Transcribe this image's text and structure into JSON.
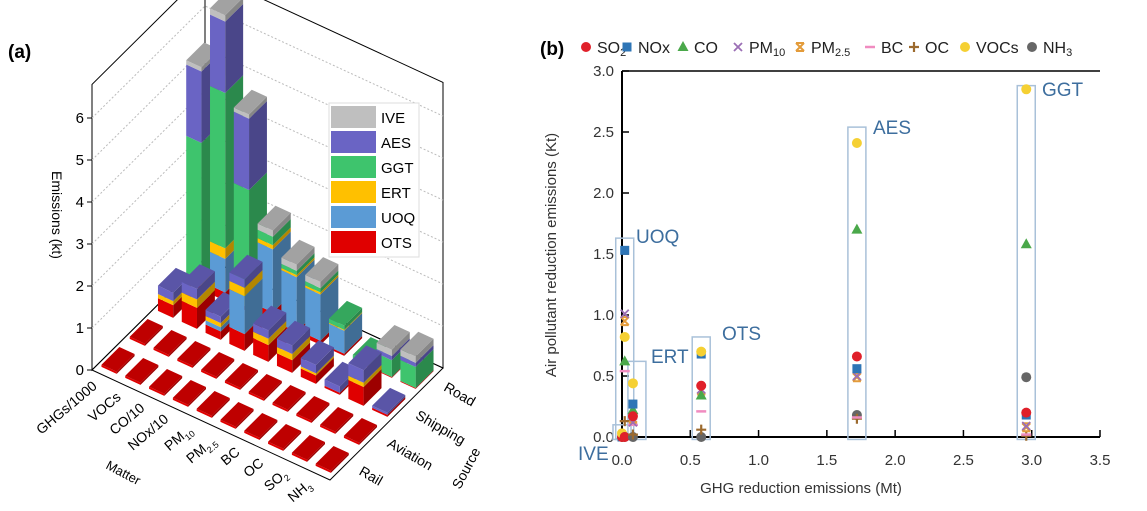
{
  "chart_data": [
    {
      "panel_label": "(a)",
      "type": "bar",
      "subtype": "3d-stacked-bar",
      "zlabel": "Emissions (kt)",
      "xlabel": "Matter",
      "ylabel": "Source",
      "matter": [
        "GHGs/1000",
        "VOCs",
        "CO/10",
        "NOx/10",
        "PM10",
        "PM2.5",
        "BC",
        "OC",
        "SO2",
        "NH3"
      ],
      "matter_labels": [
        "GHGs/1000",
        "VOCs",
        "CO/10",
        "NOx/10",
        "PM",
        "PM",
        "BC",
        "OC",
        "SO",
        "NH"
      ],
      "matter_subscripts": [
        "",
        "",
        "",
        "",
        "10",
        "2.5",
        "",
        "",
        "2",
        "3"
      ],
      "sources": [
        "Rail",
        "Aviation",
        "Shipping",
        "Road"
      ],
      "zticks": [
        "0",
        "1",
        "2",
        "3",
        "4",
        "5",
        "6"
      ],
      "zlim": [
        0,
        6.8
      ],
      "stack_order": [
        "OTS",
        "UOQ",
        "ERT",
        "GGT",
        "AES",
        "IVE"
      ],
      "legend": [
        {
          "name": "IVE",
          "color": "#bfbfbf"
        },
        {
          "name": "AES",
          "color": "#6a64c4"
        },
        {
          "name": "GGT",
          "color": "#3ec46d"
        },
        {
          "name": "ERT",
          "color": "#ffc000"
        },
        {
          "name": "UOQ",
          "color": "#5b9bd5"
        },
        {
          "name": "OTS",
          "color": "#e00000"
        }
      ],
      "data": {
        "Road": [
          [
            0.1,
            0,
            0.1,
            3.3,
            1.7,
            0.1
          ],
          [
            0.2,
            0.8,
            0.25,
            3.7,
            1.7,
            0.15
          ],
          [
            0.1,
            0,
            0.2,
            2.6,
            1.7,
            0.1
          ],
          [
            0.25,
            1.5,
            0.1,
            0.2,
            0,
            0.15
          ],
          [
            0.05,
            1.3,
            0.05,
            0.1,
            0,
            0.15
          ],
          [
            0.1,
            1.1,
            0.05,
            0.1,
            0,
            0.15
          ],
          [
            0.05,
            0.55,
            0.02,
            0.1,
            0,
            0
          ],
          [
            0.02,
            0,
            0,
            0.1,
            0,
            0
          ],
          [
            0.02,
            0,
            0,
            0.4,
            0.1,
            0.15
          ],
          [
            0.02,
            0,
            0,
            0.5,
            0.1,
            0.15
          ]
        ],
        "Shipping": [
          [
            0.3,
            0,
            0.1,
            0,
            0.2,
            0
          ],
          [
            0.5,
            0,
            0.2,
            0,
            0.25,
            0
          ],
          [
            0.2,
            0.1,
            0.1,
            0,
            0.15,
            0
          ],
          [
            0.4,
            0.9,
            0.2,
            0,
            0.2,
            0
          ],
          [
            0.4,
            0,
            0.15,
            0,
            0.2,
            0
          ],
          [
            0.3,
            0,
            0.15,
            0,
            0.2,
            0
          ],
          [
            0.2,
            0,
            0.05,
            0,
            0.2,
            0
          ],
          [
            0.05,
            0,
            0,
            0,
            0.15,
            0
          ],
          [
            0.45,
            0,
            0.1,
            0,
            0.3,
            0
          ],
          [
            0.05,
            0,
            0,
            0,
            0.05,
            0
          ]
        ],
        "Aviation": [
          [
            0.05,
            0,
            0,
            0,
            0,
            0
          ],
          [
            0.05,
            0,
            0,
            0,
            0,
            0
          ],
          [
            0.05,
            0,
            0,
            0,
            0,
            0
          ],
          [
            0.05,
            0,
            0,
            0,
            0,
            0
          ],
          [
            0.05,
            0,
            0,
            0,
            0,
            0
          ],
          [
            0.05,
            0,
            0,
            0,
            0,
            0
          ],
          [
            0.05,
            0,
            0,
            0,
            0,
            0
          ],
          [
            0.05,
            0,
            0,
            0,
            0,
            0
          ],
          [
            0.05,
            0,
            0,
            0,
            0,
            0
          ],
          [
            0.05,
            0,
            0,
            0,
            0,
            0
          ]
        ],
        "Rail": [
          [
            0.05,
            0,
            0,
            0,
            0,
            0
          ],
          [
            0.05,
            0,
            0,
            0,
            0,
            0
          ],
          [
            0.05,
            0,
            0,
            0,
            0,
            0
          ],
          [
            0.05,
            0,
            0,
            0,
            0,
            0
          ],
          [
            0.05,
            0,
            0,
            0,
            0,
            0
          ],
          [
            0.05,
            0,
            0,
            0,
            0,
            0
          ],
          [
            0.05,
            0,
            0,
            0,
            0,
            0
          ],
          [
            0.05,
            0,
            0,
            0,
            0,
            0
          ],
          [
            0.05,
            0,
            0,
            0,
            0,
            0
          ],
          [
            0.05,
            0,
            0,
            0,
            0,
            0
          ]
        ]
      }
    },
    {
      "panel_label": "(b)",
      "type": "scatter",
      "xlabel": "GHG reduction emissions (Mt)",
      "ylabel": "Air pollutant reduction emissions (Kt)",
      "xlim": [
        0,
        3.5
      ],
      "ylim": [
        0,
        3.0
      ],
      "xticks": [
        "0.0",
        "0.5",
        "1.0",
        "1.5",
        "2.0",
        "2.5",
        "3.0",
        "3.5"
      ],
      "yticks": [
        "0.0",
        "0.5",
        "1.0",
        "1.5",
        "2.0",
        "2.5",
        "3.0"
      ],
      "legend_placement": "top",
      "series": [
        {
          "name": "SO2",
          "label": "SO",
          "sub": "2",
          "marker": "circle",
          "color": "#e0202a"
        },
        {
          "name": "NOx",
          "label": "NOx",
          "sub": "",
          "marker": "square",
          "color": "#2e75b6"
        },
        {
          "name": "CO",
          "label": "CO",
          "sub": "",
          "marker": "triangle",
          "color": "#4aa84a"
        },
        {
          "name": "PM10",
          "label": "PM",
          "sub": "10",
          "marker": "x",
          "color": "#9b6fb5"
        },
        {
          "name": "PM2.5",
          "label": "PM",
          "sub": "2.5",
          "marker": "asterisk",
          "color": "#e39b3a"
        },
        {
          "name": "BC",
          "label": "BC",
          "sub": "",
          "marker": "dash",
          "color": "#f08cc0"
        },
        {
          "name": "OC",
          "label": "OC",
          "sub": "",
          "marker": "plus",
          "color": "#9c6a2e"
        },
        {
          "name": "VOCs",
          "label": "VOCs",
          "sub": "",
          "marker": "circle",
          "color": "#f5d033"
        },
        {
          "name": "NH3",
          "label": "NH",
          "sub": "3",
          "marker": "circle",
          "color": "#666666"
        }
      ],
      "groups": [
        {
          "name": "IVE",
          "x": 0.0,
          "box_ymax": 0.1,
          "values": {
            "SO2": 0.0,
            "NOx": 0.0,
            "CO": 0.02,
            "PM10": 0.0,
            "PM2.5": 0.01,
            "BC": 0.01,
            "OC": 0.0,
            "VOCs": 0.03,
            "NH3": 0.0
          }
        },
        {
          "name": "UOQ",
          "x": 0.02,
          "box_ymax": 1.63,
          "values": {
            "SO2": 0.0,
            "NOx": 1.53,
            "CO": 0.62,
            "PM10": 1.01,
            "PM2.5": 0.95,
            "BC": 0.54,
            "OC": 0.13,
            "VOCs": 0.82,
            "NH3": 0.0
          }
        },
        {
          "name": "ERT",
          "x": 0.08,
          "box_ymax": 0.62,
          "values": {
            "SO2": 0.17,
            "NOx": 0.27,
            "CO": 0.22,
            "PM10": 0.12,
            "PM2.5": 0.15,
            "BC": 0.1,
            "OC": 0.02,
            "VOCs": 0.44,
            "NH3": 0.0
          }
        },
        {
          "name": "OTS",
          "x": 0.58,
          "box_ymax": 0.82,
          "values": {
            "SO2": 0.42,
            "NOx": 0.68,
            "CO": 0.34,
            "PM10": 0.39,
            "PM2.5": 0.38,
            "BC": 0.21,
            "OC": 0.06,
            "VOCs": 0.7,
            "NH3": 0.0
          }
        },
        {
          "name": "AES",
          "x": 1.72,
          "box_ymax": 2.54,
          "values": {
            "SO2": 0.66,
            "NOx": 0.56,
            "CO": 1.7,
            "PM10": 0.5,
            "PM2.5": 0.49,
            "BC": 0.16,
            "OC": 0.15,
            "VOCs": 2.41,
            "NH3": 0.18
          }
        },
        {
          "name": "GGT",
          "x": 2.96,
          "box_ymax": 2.88,
          "values": {
            "SO2": 0.2,
            "NOx": 0.18,
            "CO": 1.58,
            "PM10": 0.09,
            "PM2.5": 0.08,
            "BC": 0.02,
            "OC": 0.01,
            "VOCs": 2.85,
            "NH3": 0.49
          }
        }
      ],
      "group_label_color": "#3d6e9e",
      "box_color": "#a9c1d9"
    }
  ]
}
